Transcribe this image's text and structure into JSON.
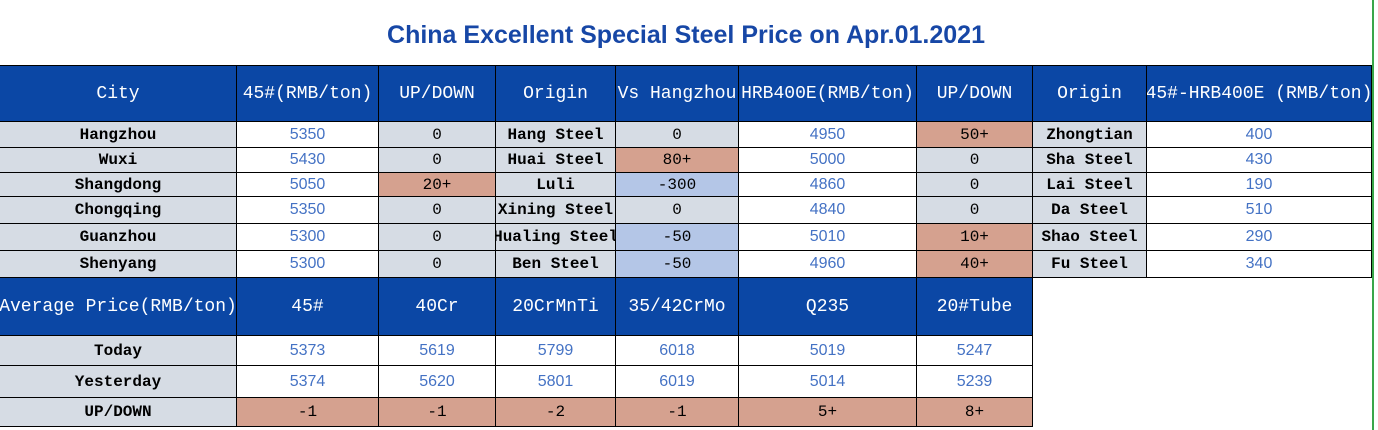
{
  "title": "China Excellent Special Steel Price on Apr.01.2021",
  "colors": {
    "header": "#0b47a5",
    "label_bg": "#d6dce4",
    "value_text": "#4472c4",
    "up": "#d5a18f",
    "down": "#b4c6e7"
  },
  "table1": {
    "headers": [
      "City",
      "45#(RMB/ton)",
      "UP/DOWN",
      "Origin",
      "Vs Hangzhou",
      "HRB400E(RMB/ton)",
      "UP/DOWN",
      "Origin",
      "45#-HRB400E (RMB/ton)"
    ],
    "rows": [
      {
        "cells": [
          "Hangzhou",
          "5350",
          "0",
          "Hang Steel",
          "0",
          "4950",
          "50+",
          "Zhongtian",
          "400"
        ],
        "styles": [
          "gray",
          "white",
          "plain",
          "gray",
          "plain",
          "white",
          "salmon",
          "gray",
          "white"
        ]
      },
      {
        "cells": [
          "Wuxi",
          "5430",
          "0",
          "Huai Steel",
          "80+",
          "5000",
          "0",
          "Sha Steel",
          "430"
        ],
        "styles": [
          "gray",
          "white",
          "plain",
          "gray",
          "salmon",
          "white",
          "plain",
          "gray",
          "white"
        ]
      },
      {
        "cells": [
          "Shangdong",
          "5050",
          "20+",
          "Luli",
          "-300",
          "4860",
          "0",
          "Lai Steel",
          "190"
        ],
        "styles": [
          "gray",
          "white",
          "salmon",
          "gray",
          "lblue",
          "white",
          "plain",
          "gray",
          "white"
        ]
      },
      {
        "cells": [
          "Chongqing",
          "5350",
          "0",
          "Xining Steel",
          "0",
          "4840",
          "0",
          "Da Steel",
          "510"
        ],
        "styles": [
          "gray",
          "white",
          "plain",
          "gray",
          "plain",
          "white",
          "plain",
          "gray",
          "white"
        ]
      },
      {
        "cells": [
          "Guanzhou",
          "5300",
          "0",
          "Hualing Steel",
          "-50",
          "5010",
          "10+",
          "Shao Steel",
          "290"
        ],
        "styles": [
          "gray",
          "white",
          "plain",
          "gray",
          "lblue",
          "white",
          "salmon",
          "gray",
          "white"
        ]
      },
      {
        "cells": [
          "Shenyang",
          "5300",
          "0",
          "Ben Steel",
          "-50",
          "4960",
          "40+",
          "Fu Steel",
          "340"
        ],
        "styles": [
          "gray",
          "white",
          "plain",
          "gray",
          "lblue",
          "white",
          "salmon",
          "gray",
          "white"
        ]
      }
    ]
  },
  "table2": {
    "headers": [
      "Average Price(RMB/ton)",
      "45#",
      "40Cr",
      "20CrMnTi",
      "35/42CrMo",
      "Q235",
      "20#Tube"
    ],
    "rows": [
      {
        "cells": [
          "Today",
          "5373",
          "5619",
          "5799",
          "6018",
          "5019",
          "5247"
        ],
        "styles": [
          "gray",
          "white",
          "white",
          "white",
          "white",
          "white",
          "white"
        ]
      },
      {
        "cells": [
          "Yesterday",
          "5374",
          "5620",
          "5801",
          "6019",
          "5014",
          "5239"
        ],
        "styles": [
          "gray",
          "white",
          "white",
          "white",
          "white",
          "white",
          "white"
        ]
      },
      {
        "cells": [
          "UP/DOWN",
          "-1",
          "-1",
          "-2",
          "-1",
          "5+",
          "8+"
        ],
        "styles": [
          "gray",
          "salmon",
          "salmon",
          "salmon",
          "salmon",
          "salmon",
          "salmon"
        ]
      }
    ]
  }
}
